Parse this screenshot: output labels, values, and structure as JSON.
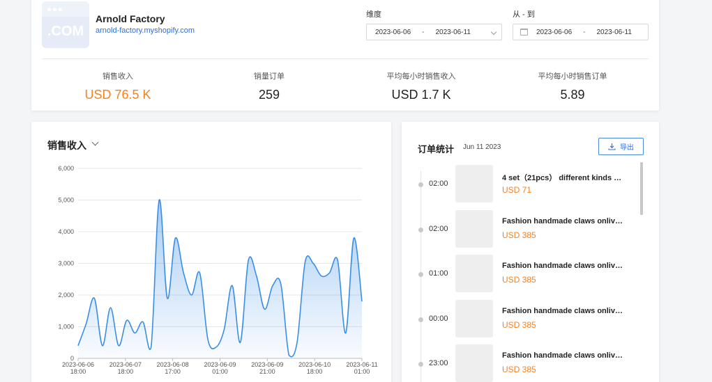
{
  "store": {
    "logo_text": ".COM",
    "name": "Arnold Factory",
    "url": "arnold-factory.myshopify.com"
  },
  "filters": {
    "dimension_label": "维度",
    "dimension_start": "2023-06-06",
    "dimension_end": "2023-06-11",
    "range_label": "从 - 到",
    "range_start": "2023-06-06",
    "range_end": "2023-06-11",
    "separator": "-"
  },
  "stats": [
    {
      "label": "销售收入",
      "value": "USD 76.5 K"
    },
    {
      "label": "销量订单",
      "value": "259"
    },
    {
      "label": "平均每小时销售收入",
      "value": "USD 1.7 K"
    },
    {
      "label": "平均每小时销售订单",
      "value": "5.89"
    }
  ],
  "chart": {
    "title": "销售收入"
  },
  "chart_data": {
    "type": "area",
    "ylim": [
      0,
      6000
    ],
    "y_ticks": [
      0,
      1000,
      2000,
      3000,
      4000,
      5000,
      6000
    ],
    "y_tick_labels": [
      "0",
      "1,000",
      "2,000",
      "3,000",
      "4,000",
      "5,000",
      "6,000"
    ],
    "x_tick_labels": [
      [
        "2023-06-06",
        "18:00"
      ],
      [
        "2023-06-07",
        "18:00"
      ],
      [
        "2023-06-08",
        "17:00"
      ],
      [
        "2023-06-09",
        "01:00"
      ],
      [
        "2023-06-09",
        "21:00"
      ],
      [
        "2023-06-10",
        "18:00"
      ],
      [
        "2023-06-11",
        "01:00"
      ]
    ],
    "grid": true,
    "color": "#3a8ee6",
    "series": [
      {
        "values": [
          400,
          1100,
          1900,
          400,
          1600,
          400,
          1200,
          800,
          1150,
          350,
          5000,
          1900,
          3800,
          2700,
          2000,
          2700,
          600,
          350,
          900,
          2300,
          500,
          3100,
          2600,
          1550,
          2300,
          2350,
          100,
          500,
          3050,
          3000,
          2600,
          2700,
          3100,
          800,
          3800,
          1800
        ]
      }
    ]
  },
  "orders": {
    "title": "订单统计",
    "date": "Jun 11 2023",
    "export_label": "导出",
    "items": [
      {
        "time": "02:00",
        "name": "4 set（21pcs） different kinds o...",
        "price": "USD 71"
      },
      {
        "time": "02:00",
        "name": "Fashion handmade claws onlive...",
        "price": "USD 385"
      },
      {
        "time": "01:00",
        "name": "Fashion handmade claws onlive...",
        "price": "USD 385"
      },
      {
        "time": "00:00",
        "name": "Fashion handmade claws onlive...",
        "price": "USD 385"
      },
      {
        "time": "23:00",
        "name": "Fashion handmade claws onlive...",
        "price": "USD 385"
      }
    ]
  }
}
